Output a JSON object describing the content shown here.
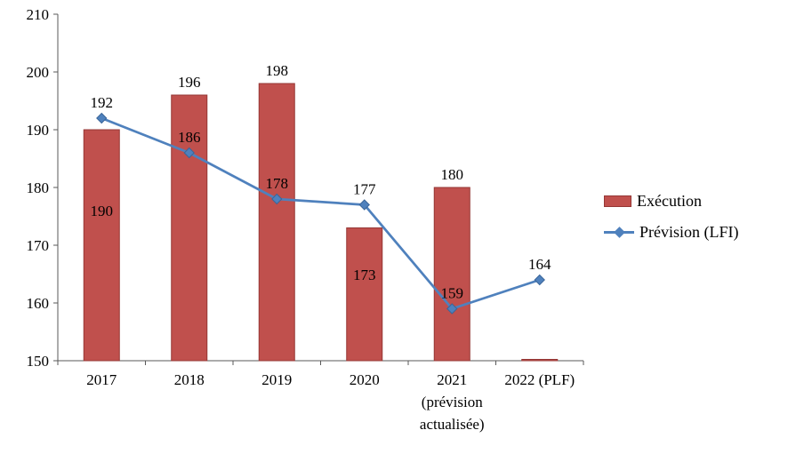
{
  "chart_data": {
    "type": "bar",
    "subtype": "combo-bar-line",
    "title": "",
    "xlabel": "",
    "ylabel": "",
    "grid": false,
    "legend_position": "right",
    "ylim": [
      150,
      210
    ],
    "yticks": [
      150,
      160,
      170,
      180,
      190,
      200,
      210
    ],
    "axis_color": "#595959",
    "categories": [
      "2017",
      "2018",
      "2019",
      "2020",
      "2021 (prévision actualisée)",
      "2022 (PLF)"
    ],
    "category_lines": [
      [
        "2017"
      ],
      [
        "2018"
      ],
      [
        "2019"
      ],
      [
        "2020"
      ],
      [
        "2021",
        "(prévision",
        "actualisée)"
      ],
      [
        "2022 (PLF)"
      ]
    ],
    "series": [
      {
        "name": "Exécution",
        "type": "bar",
        "color": "#C0504D",
        "border": "#953735",
        "values": [
          190,
          196,
          198,
          173,
          180,
          150
        ],
        "labels": [
          "190",
          "196",
          "198",
          "173",
          "180",
          ""
        ],
        "label_pos": [
          "inside",
          "above",
          "above",
          "inside",
          "above",
          "none"
        ]
      },
      {
        "name": "Prévision (LFI)",
        "type": "line",
        "color": "#4F81BD",
        "border": "#3A6599",
        "values": [
          192,
          186,
          178,
          177,
          159,
          164
        ],
        "labels": [
          "192",
          "186",
          "178",
          "177",
          "159",
          "164"
        ]
      }
    ]
  }
}
